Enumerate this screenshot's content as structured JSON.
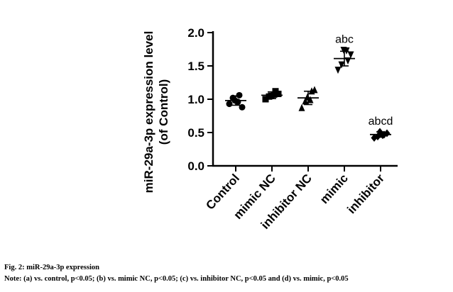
{
  "caption": {
    "title": "Fig. 2: miR-29a-3p expression",
    "note": "Note: (a) vs. control, p<0.05; (b) vs. mimic NC, p<0.05; (c) vs. inhibitor NC, p<0.05 and (d) vs. mimic, p<0.05"
  },
  "chart_data": {
    "type": "scatter",
    "title": "",
    "xlabel": "",
    "ylabel_line1": "miR-29a-3p expression level",
    "ylabel_line2": "(of Control)",
    "ylim": [
      0.0,
      2.0
    ],
    "yticks": [
      "0.0",
      "0.5",
      "1.0",
      "1.5",
      "2.0"
    ],
    "yticks_values": [
      0.0,
      0.5,
      1.0,
      1.5,
      2.0
    ],
    "grid": false,
    "categories": [
      "Control",
      "mimic NC",
      "inhibitor NC",
      "mimic",
      "inhibitor"
    ],
    "groups": [
      {
        "name": "Control",
        "marker": "circle",
        "mean": 0.98,
        "sd": 0.07,
        "points": [
          0.93,
          1.02,
          1.06,
          0.88,
          0.98,
          0.96
        ],
        "label": ""
      },
      {
        "name": "mimic NC",
        "marker": "square",
        "mean": 1.06,
        "sd": 0.05,
        "points": [
          1.0,
          1.04,
          1.12,
          1.08,
          1.05,
          1.07
        ],
        "label": ""
      },
      {
        "name": "inhibitor NC",
        "marker": "triangle-up",
        "mean": 1.02,
        "sd": 0.1,
        "points": [
          0.87,
          0.97,
          1.12,
          1.14,
          1.03,
          0.99
        ],
        "label": ""
      },
      {
        "name": "mimic",
        "marker": "triangle-down",
        "mean": 1.61,
        "sd": 0.11,
        "points": [
          1.44,
          1.52,
          1.58,
          1.67,
          1.74,
          1.73
        ],
        "label": "abc"
      },
      {
        "name": "inhibitor",
        "marker": "diamond",
        "mean": 0.47,
        "sd": 0.04,
        "points": [
          0.42,
          0.44,
          0.47,
          0.49,
          0.51,
          0.46
        ],
        "label": "abcd"
      }
    ]
  }
}
